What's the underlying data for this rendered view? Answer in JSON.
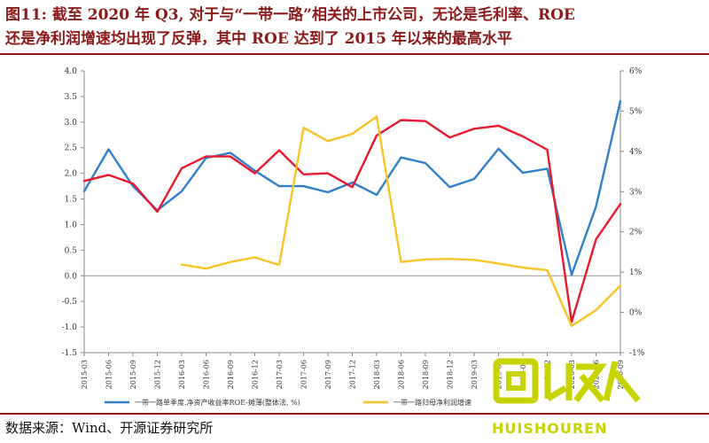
{
  "header": {
    "title_line1": "图11: 截至 2020 年 Q3, 对于与“一带一路”相关的上市公司，无论是毛利率、ROE",
    "title_line2": "还是净利润增速均出现了反弹，其中 ROE 达到了 2015 年以来的最高水平"
  },
  "footer": {
    "source": "数据来源：Wind、开源证券研究所"
  },
  "watermark": {
    "text": "HUISHOUREN",
    "logo_glyphs": "回收人"
  },
  "colors": {
    "blue": "#2f80c9",
    "red": "#e8182d",
    "yellow": "#f7c325",
    "title": "#8b1a1a"
  },
  "chart_data": {
    "type": "line",
    "x": [
      "2015-03",
      "2015-06",
      "2015-09",
      "2015-12",
      "2016-03",
      "2016-06",
      "2016-09",
      "2016-12",
      "2017-03",
      "2017-06",
      "2017-09",
      "2017-12",
      "2018-03",
      "2018-06",
      "2018-09",
      "2018-12",
      "2019-03",
      "2019-06",
      "2019-09",
      "2019-12",
      "2020-03",
      "2020-06",
      "2020-09"
    ],
    "y_left": {
      "ticks": [
        "-1.5",
        "-1.0",
        "-0.5",
        "0.0",
        "0.5",
        "1.0",
        "1.5",
        "2.0",
        "2.5",
        "3.0",
        "3.5",
        "4.0"
      ],
      "range": [
        -1.5,
        4.0
      ]
    },
    "y_right": {
      "ticks": [
        "-1%",
        "0%",
        "1%",
        "2%",
        "3%",
        "4%",
        "5%",
        "6%"
      ],
      "range": [
        -1,
        6
      ]
    },
    "series": [
      {
        "name": "一带一路单季度.净资产收益率ROE-摊薄(整体法, %)",
        "axis": "left",
        "color": "#2f80c9",
        "values": [
          1.65,
          2.47,
          1.75,
          1.28,
          1.65,
          2.3,
          2.4,
          2.05,
          1.75,
          1.75,
          1.63,
          1.82,
          1.58,
          2.31,
          2.2,
          1.73,
          1.89,
          2.48,
          2.01,
          2.09,
          0.02,
          1.35,
          3.41
        ]
      },
      {
        "name": "",
        "axis": "left",
        "color": "#e8182d",
        "values": [
          1.85,
          1.97,
          1.8,
          1.25,
          2.1,
          2.33,
          2.33,
          2.0,
          2.45,
          1.98,
          2.0,
          1.73,
          2.74,
          3.04,
          3.02,
          2.7,
          2.87,
          2.93,
          2.72,
          2.46,
          -0.9,
          0.71,
          1.4
        ]
      },
      {
        "name": "一带一路归母净利润增速",
        "axis": "left",
        "color": "#f7c325",
        "values": [
          null,
          null,
          null,
          null,
          0.22,
          0.14,
          0.27,
          0.36,
          0.21,
          2.89,
          2.63,
          2.77,
          3.11,
          0.27,
          0.32,
          0.33,
          0.31,
          0.24,
          0.16,
          0.11,
          -0.98,
          -0.67,
          -0.19
        ]
      }
    ]
  }
}
